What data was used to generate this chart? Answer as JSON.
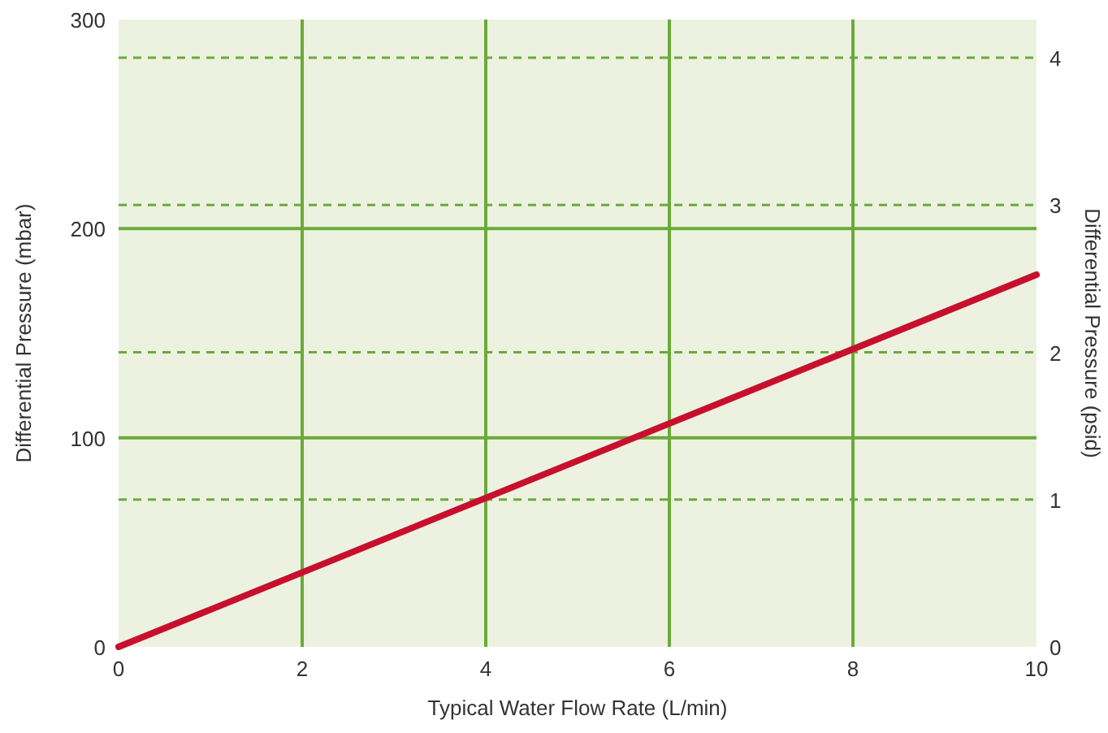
{
  "chart_data": {
    "type": "line",
    "xlabel": "Typical Water Flow Rate (L/min)",
    "ylabel": "Differential Pressure (mbar)",
    "y2label": "Differential Pressure (psid)",
    "x": [
      0,
      10
    ],
    "series": [
      {
        "color": "#c8102e",
        "values": [
          0,
          178
        ]
      }
    ],
    "xlim": [
      0,
      10
    ],
    "xticks": [
      0,
      2,
      4,
      6,
      8,
      10
    ],
    "ylim": [
      0,
      300
    ],
    "yticks": [
      0,
      100,
      200,
      300
    ],
    "y2lim": [
      0,
      4.26
    ],
    "y2ticks": [
      0,
      1,
      2,
      3,
      4
    ],
    "grid": true,
    "marker": "none",
    "line_style": "solid"
  }
}
